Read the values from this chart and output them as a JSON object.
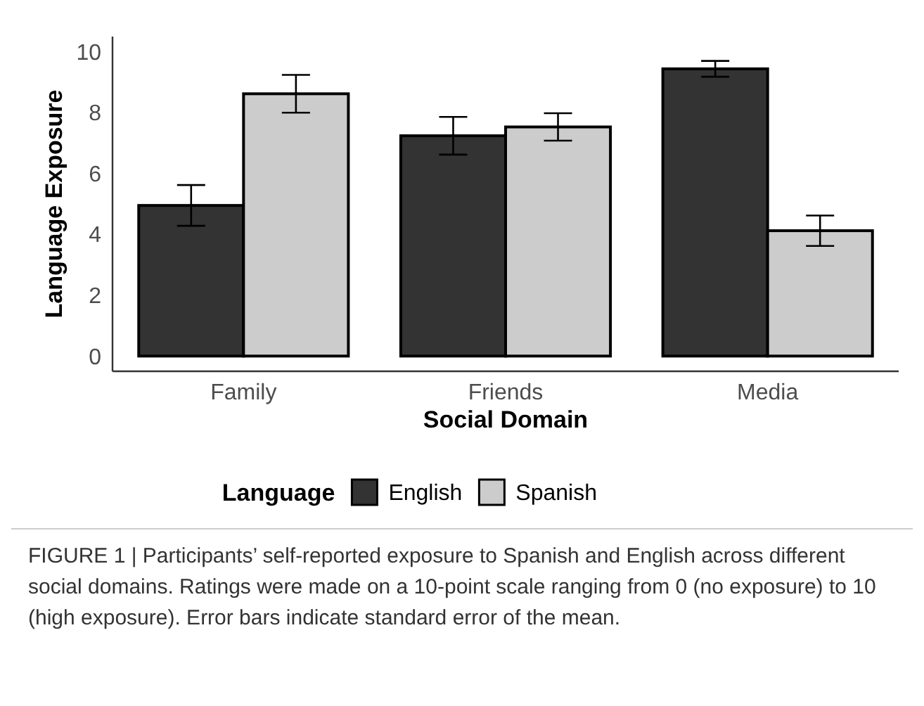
{
  "chart_data": {
    "type": "bar",
    "xlabel": "Social Domain",
    "ylabel": "Language Exposure",
    "legend_title": "Language",
    "categories": [
      "Family",
      "Friends",
      "Media"
    ],
    "series": [
      {
        "name": "English",
        "color": "#333333",
        "values": [
          4.95,
          7.24,
          9.44
        ],
        "errors": [
          0.67,
          0.62,
          0.26
        ]
      },
      {
        "name": "Spanish",
        "color": "#cccccc",
        "values": [
          8.62,
          7.53,
          4.12
        ],
        "errors": [
          0.62,
          0.45,
          0.5
        ]
      }
    ],
    "ylim": [
      -0.5,
      10.5
    ],
    "yticks": [
      0,
      2,
      4,
      6,
      8,
      10
    ],
    "grid": false,
    "legend": "bottom",
    "annotations": [
      "FIGURE 1 | Participants’ self-reported exposure to Spanish and English across different social domains. Ratings were made on a 10-point scale ranging from 0 (no exposure) to 10 (high exposure). Error bars indicate standard error of the mean."
    ]
  }
}
